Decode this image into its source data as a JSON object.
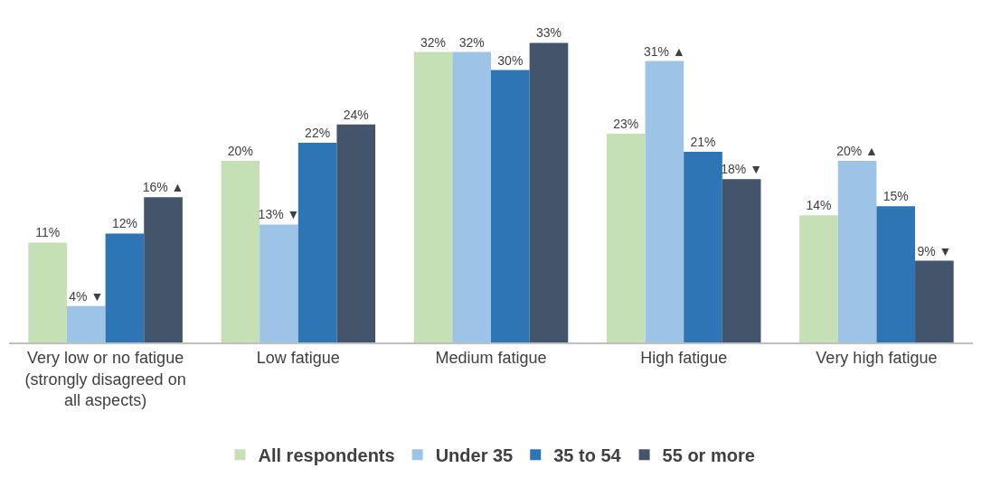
{
  "chart_data": {
    "type": "bar",
    "categories": [
      "Very low or no fatigue\n(strongly disagreed on\nall aspects)",
      "Low fatigue",
      "Medium fatigue",
      "High fatigue",
      "Very high fatigue"
    ],
    "series": [
      {
        "name": "All respondents",
        "color": "#c5e0b4",
        "values": [
          11,
          20,
          32,
          23,
          14
        ],
        "value_labels": [
          "11%",
          "20%",
          "32%",
          "23%",
          "14%"
        ]
      },
      {
        "name": "Under 35",
        "color": "#9dc3e6",
        "values": [
          4,
          13,
          32,
          31,
          20
        ],
        "value_labels": [
          "4% ▼",
          "13% ▼",
          "32%",
          "31% ▲",
          "20% ▲"
        ]
      },
      {
        "name": "35 to 54",
        "color": "#2e75b6",
        "values": [
          12,
          22,
          30,
          21,
          15
        ],
        "value_labels": [
          "12%",
          "22%",
          "30%",
          "21%",
          "15%"
        ]
      },
      {
        "name": "55 or more",
        "color": "#44546a",
        "values": [
          16,
          24,
          33,
          18,
          9
        ],
        "value_labels": [
          "16% ▲",
          "24%",
          "33%",
          "18% ▼",
          "9% ▼"
        ]
      }
    ],
    "legend": "bottom"
  }
}
